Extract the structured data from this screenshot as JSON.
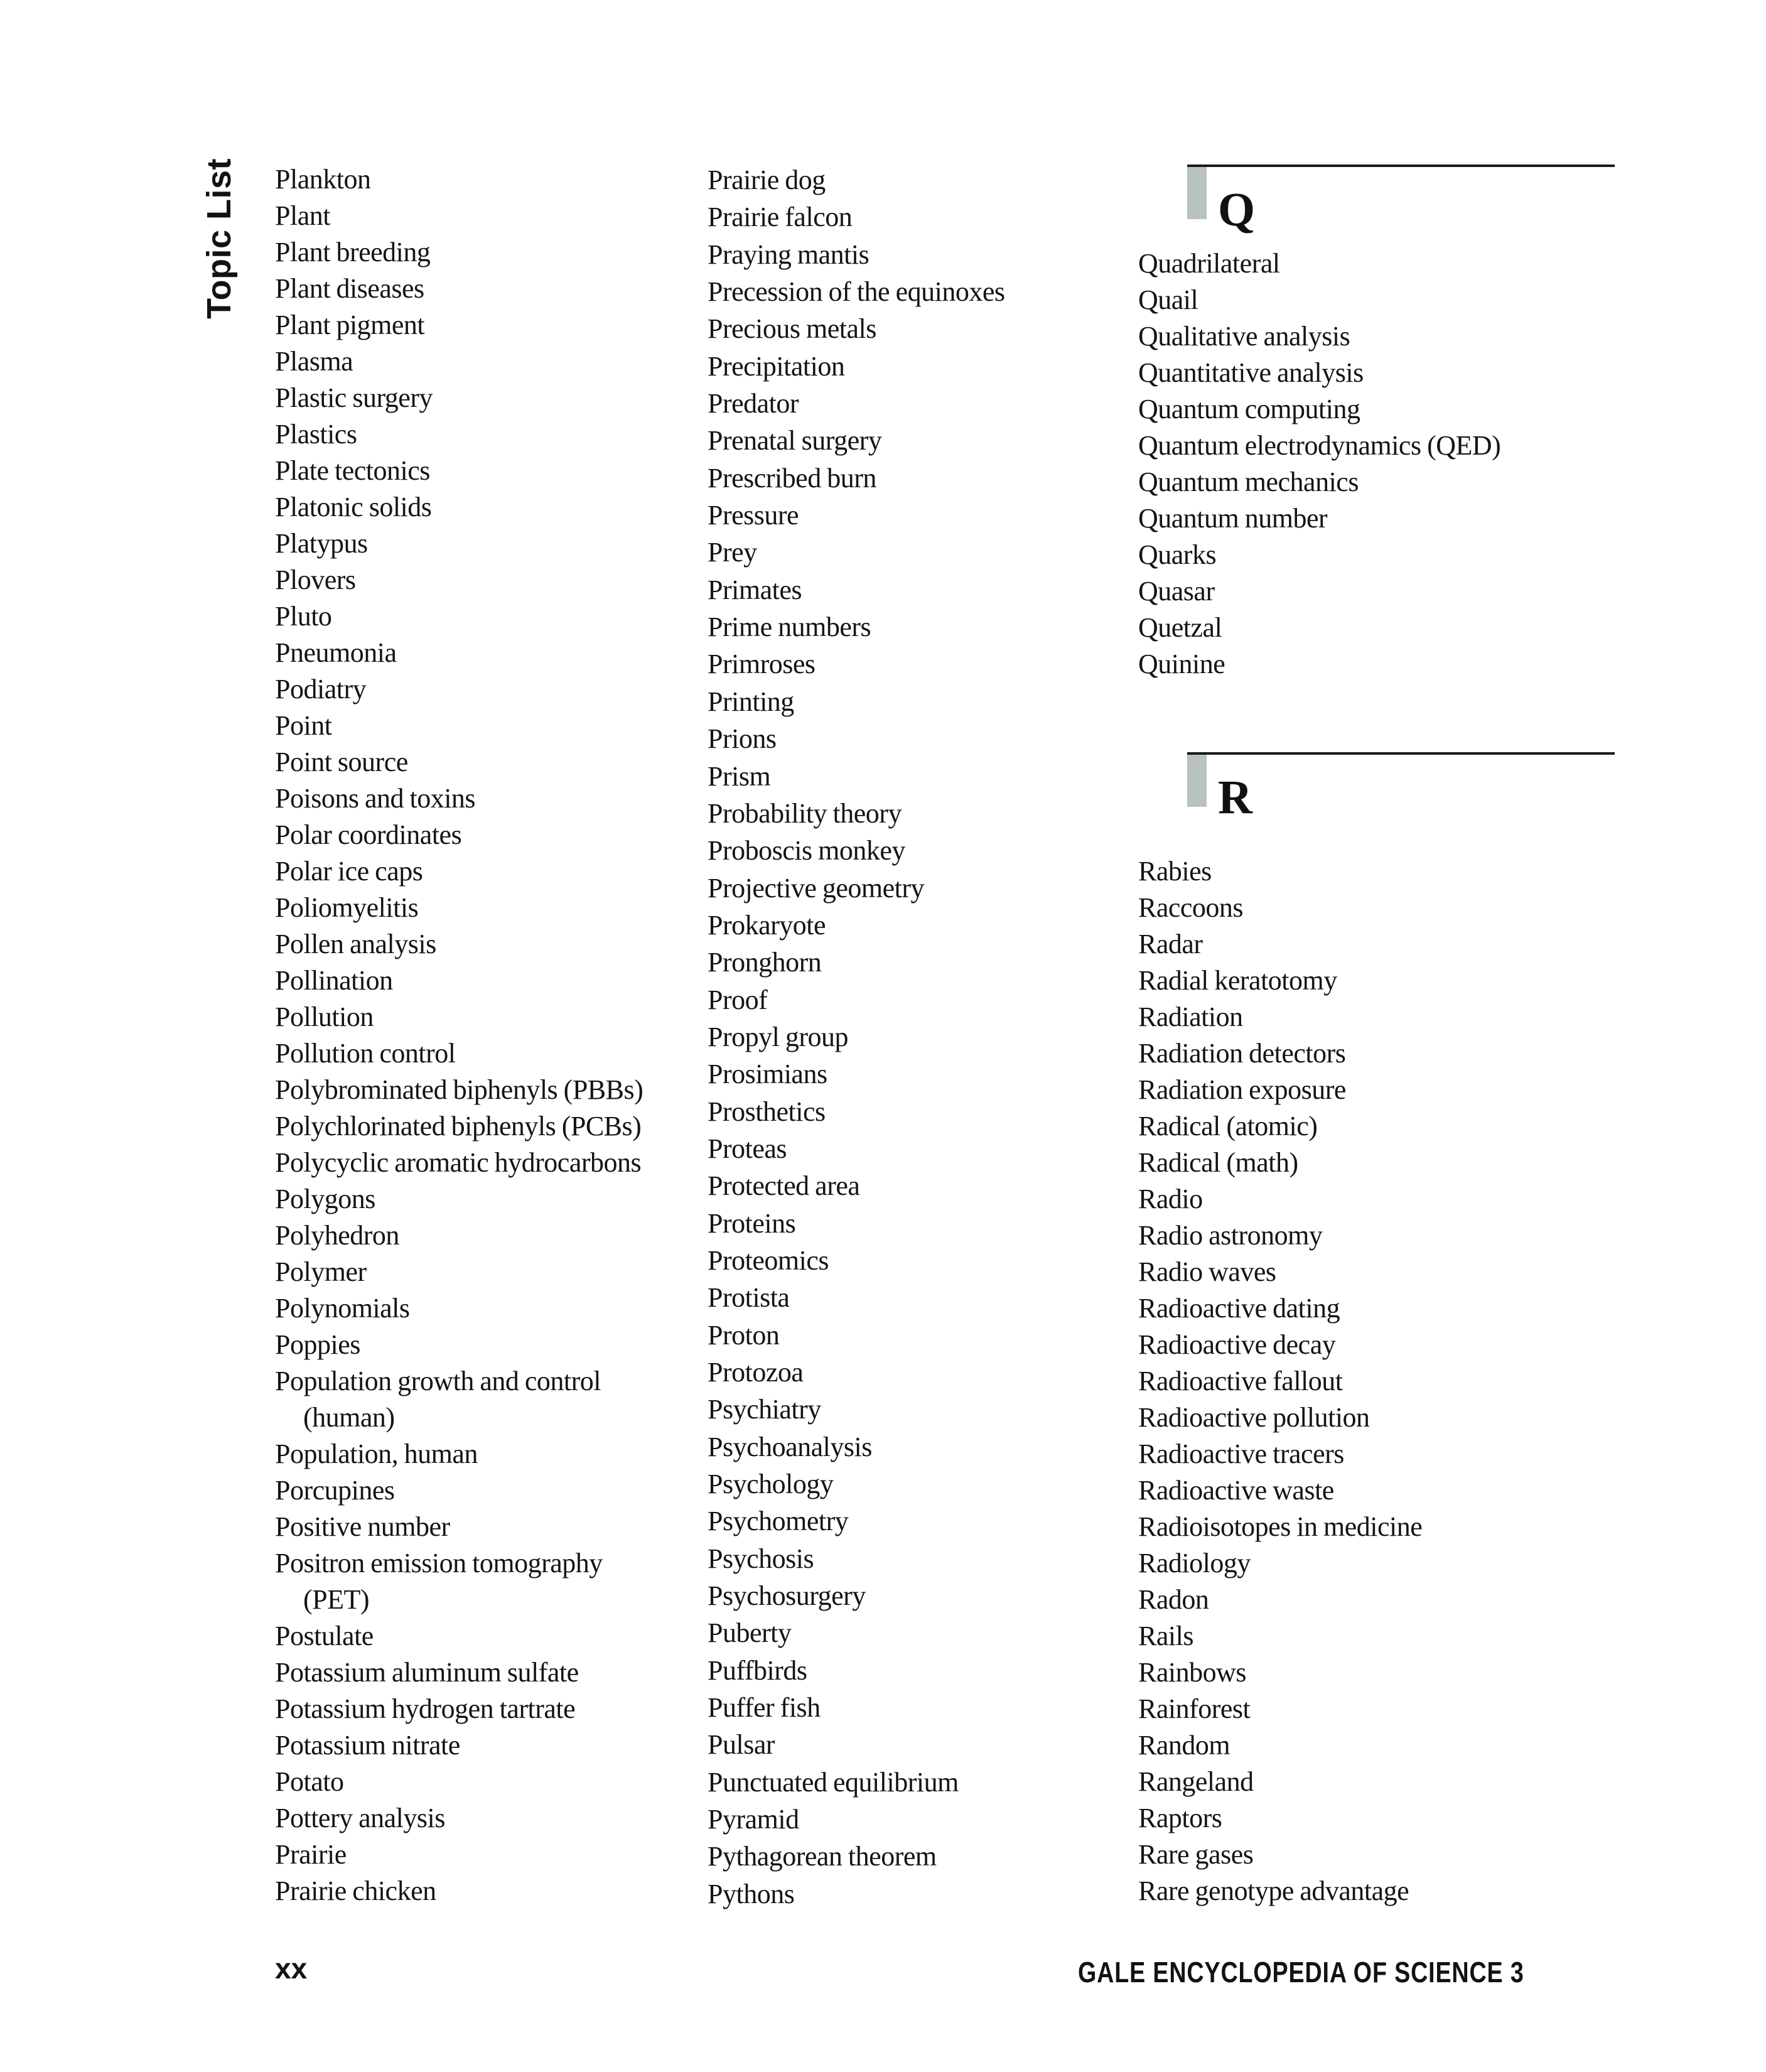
{
  "page": {
    "sidebar_label": "Topic List",
    "page_number": "xx",
    "footer_title": "GALE ENCYCLOPEDIA OF SCIENCE 3",
    "colors": {
      "tab": "#b8c2be",
      "rule": "#1a1a1a",
      "ink": "#141414"
    }
  },
  "columns": {
    "col1": [
      {
        "t": "Plankton"
      },
      {
        "t": "Plant"
      },
      {
        "t": "Plant breeding"
      },
      {
        "t": "Plant diseases"
      },
      {
        "t": "Plant pigment"
      },
      {
        "t": "Plasma"
      },
      {
        "t": "Plastic surgery"
      },
      {
        "t": "Plastics"
      },
      {
        "t": "Plate tectonics"
      },
      {
        "t": "Platonic solids"
      },
      {
        "t": "Platypus"
      },
      {
        "t": "Plovers"
      },
      {
        "t": "Pluto"
      },
      {
        "t": "Pneumonia"
      },
      {
        "t": "Podiatry"
      },
      {
        "t": "Point"
      },
      {
        "t": "Point source"
      },
      {
        "t": "Poisons and toxins"
      },
      {
        "t": "Polar coordinates"
      },
      {
        "t": "Polar ice caps"
      },
      {
        "t": "Poliomyelitis"
      },
      {
        "t": "Pollen analysis"
      },
      {
        "t": "Pollination"
      },
      {
        "t": "Pollution"
      },
      {
        "t": "Pollution control"
      },
      {
        "t": "Polybrominated biphenyls (PBBs)"
      },
      {
        "t": "Polychlorinated biphenyls (PCBs)"
      },
      {
        "t": "Polycyclic aromatic hydrocarbons"
      },
      {
        "t": "Polygons"
      },
      {
        "t": "Polyhedron"
      },
      {
        "t": "Polymer"
      },
      {
        "t": "Polynomials"
      },
      {
        "t": "Poppies"
      },
      {
        "t": "Population growth and control"
      },
      {
        "t": "(human)",
        "indent": true
      },
      {
        "t": "Population, human"
      },
      {
        "t": "Porcupines"
      },
      {
        "t": "Positive number"
      },
      {
        "t": "Positron emission tomography"
      },
      {
        "t": "(PET)",
        "indent": true
      },
      {
        "t": "Postulate"
      },
      {
        "t": "Potassium aluminum sulfate"
      },
      {
        "t": "Potassium hydrogen tartrate"
      },
      {
        "t": "Potassium nitrate"
      },
      {
        "t": "Potato"
      },
      {
        "t": "Pottery analysis"
      },
      {
        "t": "Prairie"
      },
      {
        "t": "Prairie chicken"
      }
    ],
    "col2": [
      {
        "t": "Prairie dog"
      },
      {
        "t": "Prairie falcon"
      },
      {
        "t": "Praying mantis"
      },
      {
        "t": "Precession of the equinoxes"
      },
      {
        "t": "Precious metals"
      },
      {
        "t": "Precipitation"
      },
      {
        "t": "Predator"
      },
      {
        "t": "Prenatal surgery"
      },
      {
        "t": "Prescribed burn"
      },
      {
        "t": "Pressure"
      },
      {
        "t": "Prey"
      },
      {
        "t": "Primates"
      },
      {
        "t": "Prime numbers"
      },
      {
        "t": "Primroses"
      },
      {
        "t": "Printing"
      },
      {
        "t": "Prions"
      },
      {
        "t": "Prism"
      },
      {
        "t": "Probability theory"
      },
      {
        "t": "Proboscis monkey"
      },
      {
        "t": "Projective geometry"
      },
      {
        "t": "Prokaryote"
      },
      {
        "t": "Pronghorn"
      },
      {
        "t": "Proof"
      },
      {
        "t": "Propyl group"
      },
      {
        "t": "Prosimians"
      },
      {
        "t": "Prosthetics"
      },
      {
        "t": "Proteas"
      },
      {
        "t": "Protected area"
      },
      {
        "t": "Proteins"
      },
      {
        "t": "Proteomics"
      },
      {
        "t": "Protista"
      },
      {
        "t": "Proton"
      },
      {
        "t": "Protozoa"
      },
      {
        "t": "Psychiatry"
      },
      {
        "t": "Psychoanalysis"
      },
      {
        "t": "Psychology"
      },
      {
        "t": "Psychometry"
      },
      {
        "t": "Psychosis"
      },
      {
        "t": "Psychosurgery"
      },
      {
        "t": "Puberty"
      },
      {
        "t": "Puffbirds"
      },
      {
        "t": "Puffer fish"
      },
      {
        "t": "Pulsar"
      },
      {
        "t": "Punctuated equilibrium"
      },
      {
        "t": "Pyramid"
      },
      {
        "t": "Pythagorean theorem"
      },
      {
        "t": "Pythons"
      }
    ]
  },
  "sections": {
    "q": {
      "letter": "Q",
      "entries": [
        {
          "t": "Quadrilateral"
        },
        {
          "t": "Quail"
        },
        {
          "t": "Qualitative analysis"
        },
        {
          "t": "Quantitative analysis"
        },
        {
          "t": "Quantum computing"
        },
        {
          "t": "Quantum electrodynamics (QED)"
        },
        {
          "t": "Quantum mechanics"
        },
        {
          "t": "Quantum number"
        },
        {
          "t": "Quarks"
        },
        {
          "t": "Quasar"
        },
        {
          "t": "Quetzal"
        },
        {
          "t": "Quinine"
        }
      ]
    },
    "r": {
      "letter": "R",
      "entries": [
        {
          "t": "Rabies"
        },
        {
          "t": "Raccoons"
        },
        {
          "t": "Radar"
        },
        {
          "t": "Radial keratotomy"
        },
        {
          "t": "Radiation"
        },
        {
          "t": "Radiation detectors"
        },
        {
          "t": "Radiation exposure"
        },
        {
          "t": "Radical (atomic)"
        },
        {
          "t": "Radical (math)"
        },
        {
          "t": "Radio"
        },
        {
          "t": "Radio astronomy"
        },
        {
          "t": "Radio waves"
        },
        {
          "t": "Radioactive dating"
        },
        {
          "t": "Radioactive decay"
        },
        {
          "t": "Radioactive fallout"
        },
        {
          "t": "Radioactive pollution"
        },
        {
          "t": "Radioactive tracers"
        },
        {
          "t": "Radioactive waste"
        },
        {
          "t": "Radioisotopes in medicine"
        },
        {
          "t": "Radiology"
        },
        {
          "t": "Radon"
        },
        {
          "t": "Rails"
        },
        {
          "t": "Rainbows"
        },
        {
          "t": "Rainforest"
        },
        {
          "t": "Random"
        },
        {
          "t": "Rangeland"
        },
        {
          "t": "Raptors"
        },
        {
          "t": "Rare gases"
        },
        {
          "t": "Rare genotype advantage"
        }
      ]
    }
  }
}
